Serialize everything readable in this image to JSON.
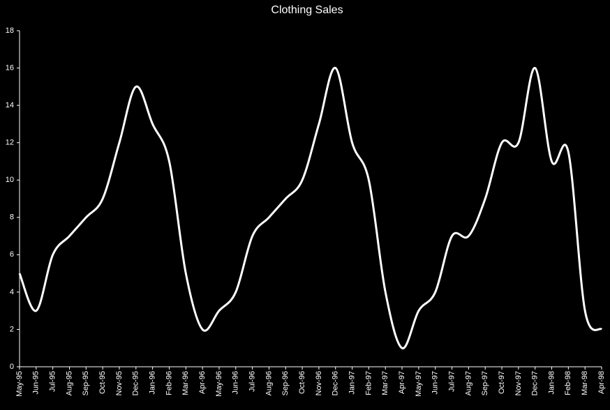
{
  "chart_data": {
    "type": "line",
    "title": "Clothing Sales",
    "categories": [
      "May-95",
      "Jun-95",
      "Jul-95",
      "Aug-95",
      "Sep-95",
      "Oct-95",
      "Nov-95",
      "Dec-95",
      "Jan-96",
      "Feb-96",
      "Mar-96",
      "Apr-96",
      "May-96",
      "Jun-96",
      "Jul-96",
      "Aug-96",
      "Sep-96",
      "Oct-96",
      "Nov-96",
      "Dec-96",
      "Jan-97",
      "Feb-97",
      "Mar-97",
      "Apr-97",
      "May-97",
      "Jun-97",
      "Jul-97",
      "Aug-97",
      "Sep-97",
      "Oct-97",
      "Nov-97",
      "Dec-97",
      "Jan-98",
      "Feb-98",
      "Mar-98",
      "Apr-98"
    ],
    "values": [
      5,
      3,
      6,
      7,
      8,
      9,
      12,
      15,
      13,
      11,
      5,
      2,
      3,
      4,
      7,
      8,
      9,
      10,
      13,
      16,
      12,
      10,
      4,
      1,
      3,
      4,
      7,
      7,
      9,
      12,
      12,
      16,
      11,
      11.5,
      3,
      2
    ],
    "color": "#ffffff",
    "ylim": [
      0,
      18
    ],
    "yticks": [
      0,
      2,
      4,
      6,
      8,
      10,
      12,
      14,
      16,
      18
    ],
    "smooth": true
  }
}
